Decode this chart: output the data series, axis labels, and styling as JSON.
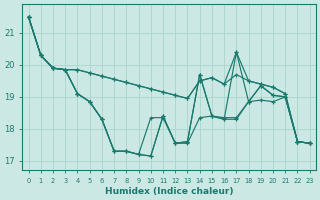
{
  "xlabel": "Humidex (Indice chaleur)",
  "bg_color": "#cce8e4",
  "line_color": "#1a7a6e",
  "grid_color": "#aad4cc",
  "xlim": [
    -0.5,
    23.5
  ],
  "ylim": [
    16.7,
    21.9
  ],
  "yticks": [
    17,
    18,
    19,
    20,
    21
  ],
  "xticks": [
    0,
    1,
    2,
    3,
    4,
    5,
    6,
    7,
    8,
    9,
    10,
    11,
    12,
    13,
    14,
    15,
    16,
    17,
    18,
    19,
    20,
    21,
    22,
    23
  ],
  "series": [
    [
      21.5,
      20.3,
      19.9,
      19.85,
      19.85,
      19.75,
      19.65,
      19.55,
      19.45,
      19.35,
      19.25,
      19.15,
      19.05,
      18.95,
      19.5,
      19.6,
      19.4,
      19.7,
      19.5,
      19.4,
      19.3,
      19.1,
      17.6,
      17.55
    ],
    [
      21.5,
      20.3,
      19.9,
      19.85,
      19.85,
      19.75,
      19.65,
      19.55,
      19.45,
      19.35,
      19.25,
      19.15,
      19.05,
      18.95,
      19.5,
      19.6,
      19.4,
      20.4,
      19.5,
      19.4,
      19.3,
      19.1,
      17.6,
      17.55
    ],
    [
      21.5,
      20.3,
      19.9,
      19.85,
      19.1,
      18.85,
      18.3,
      17.3,
      17.3,
      17.2,
      17.15,
      18.4,
      17.55,
      17.6,
      19.7,
      18.4,
      18.3,
      18.3,
      18.85,
      19.35,
      19.05,
      19.0,
      17.6,
      17.55
    ],
    [
      21.5,
      20.3,
      19.9,
      19.85,
      19.1,
      18.85,
      18.3,
      17.3,
      17.3,
      17.2,
      17.15,
      18.4,
      17.55,
      17.6,
      19.7,
      18.4,
      18.3,
      20.4,
      18.85,
      19.35,
      19.05,
      19.0,
      17.6,
      17.55
    ],
    [
      21.5,
      20.3,
      19.9,
      19.85,
      19.1,
      18.85,
      18.3,
      17.3,
      17.3,
      17.2,
      18.35,
      18.35,
      17.55,
      17.55,
      18.35,
      18.4,
      18.35,
      18.35,
      18.85,
      18.9,
      18.85,
      19.0,
      17.6,
      17.55
    ]
  ]
}
